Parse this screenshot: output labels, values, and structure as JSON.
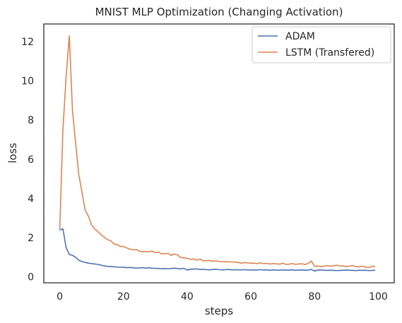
{
  "chart_data": {
    "type": "line",
    "title": "MNIST MLP Optimization (Changing Activation)",
    "xlabel": "steps",
    "ylabel": "loss",
    "xlim": [
      -5,
      105
    ],
    "ylim": [
      -0.3,
      12.9
    ],
    "xticks": [
      0,
      20,
      40,
      60,
      80,
      100
    ],
    "yticks": [
      0,
      2,
      4,
      6,
      8,
      10,
      12
    ],
    "grid": false,
    "legend_position": "top-right",
    "series": [
      {
        "name": "ADAM",
        "color": "#4c72b0",
        "x": [
          0,
          1,
          2,
          3,
          4,
          5,
          6,
          7,
          8,
          9,
          10,
          11,
          12,
          13,
          14,
          15,
          16,
          17,
          18,
          19,
          20,
          21,
          22,
          23,
          24,
          25,
          26,
          27,
          28,
          29,
          30,
          31,
          32,
          33,
          34,
          35,
          36,
          37,
          38,
          39,
          40,
          41,
          42,
          43,
          44,
          45,
          46,
          47,
          48,
          49,
          50,
          51,
          52,
          53,
          54,
          55,
          56,
          57,
          58,
          59,
          60,
          61,
          62,
          63,
          64,
          65,
          66,
          67,
          68,
          69,
          70,
          71,
          72,
          73,
          74,
          75,
          76,
          77,
          78,
          79,
          80,
          81,
          82,
          83,
          84,
          85,
          86,
          87,
          88,
          89,
          90,
          91,
          92,
          93,
          94,
          95,
          96,
          97,
          98,
          99
        ],
        "y": [
          2.39,
          2.45,
          1.5,
          1.15,
          1.1,
          1.0,
          0.85,
          0.78,
          0.74,
          0.7,
          0.68,
          0.66,
          0.64,
          0.6,
          0.56,
          0.54,
          0.53,
          0.52,
          0.5,
          0.5,
          0.49,
          0.47,
          0.48,
          0.47,
          0.45,
          0.46,
          0.47,
          0.45,
          0.47,
          0.44,
          0.44,
          0.43,
          0.42,
          0.43,
          0.41,
          0.43,
          0.45,
          0.43,
          0.41,
          0.44,
          0.35,
          0.39,
          0.4,
          0.41,
          0.38,
          0.39,
          0.37,
          0.36,
          0.38,
          0.39,
          0.37,
          0.36,
          0.37,
          0.38,
          0.36,
          0.37,
          0.36,
          0.36,
          0.37,
          0.36,
          0.35,
          0.36,
          0.35,
          0.37,
          0.35,
          0.36,
          0.34,
          0.36,
          0.35,
          0.34,
          0.36,
          0.35,
          0.35,
          0.36,
          0.34,
          0.35,
          0.36,
          0.34,
          0.35,
          0.38,
          0.3,
          0.35,
          0.36,
          0.34,
          0.33,
          0.34,
          0.33,
          0.32,
          0.33,
          0.34,
          0.35,
          0.34,
          0.33,
          0.32,
          0.34,
          0.33,
          0.34,
          0.32,
          0.33,
          0.34
        ]
      },
      {
        "name": "LSTM (Transfered)",
        "color": "#dd8452",
        "x": [
          0,
          1,
          2,
          3,
          4,
          5,
          6,
          7,
          8,
          9,
          10,
          11,
          12,
          13,
          14,
          15,
          16,
          17,
          18,
          19,
          20,
          21,
          22,
          23,
          24,
          25,
          26,
          27,
          28,
          29,
          30,
          31,
          32,
          33,
          34,
          35,
          36,
          37,
          38,
          39,
          40,
          41,
          42,
          43,
          44,
          45,
          46,
          47,
          48,
          49,
          50,
          51,
          52,
          53,
          54,
          55,
          56,
          57,
          58,
          59,
          60,
          61,
          62,
          63,
          64,
          65,
          66,
          67,
          68,
          69,
          70,
          71,
          72,
          73,
          74,
          75,
          76,
          77,
          78,
          79,
          80,
          81,
          82,
          83,
          84,
          85,
          86,
          87,
          88,
          89,
          90,
          91,
          92,
          93,
          94,
          95,
          96,
          97,
          98,
          99
        ],
        "y": [
          2.4,
          7.5,
          10.2,
          12.3,
          8.5,
          6.8,
          5.2,
          4.3,
          3.4,
          3.1,
          2.65,
          2.45,
          2.3,
          2.15,
          2.02,
          1.9,
          1.85,
          1.68,
          1.65,
          1.55,
          1.55,
          1.48,
          1.42,
          1.38,
          1.4,
          1.32,
          1.28,
          1.3,
          1.28,
          1.32,
          1.24,
          1.27,
          1.17,
          1.18,
          1.2,
          1.1,
          1.17,
          1.12,
          0.99,
          0.97,
          0.95,
          0.9,
          0.92,
          0.85,
          0.92,
          0.82,
          0.83,
          0.84,
          0.8,
          0.82,
          0.79,
          0.77,
          0.78,
          0.76,
          0.77,
          0.75,
          0.74,
          0.7,
          0.73,
          0.72,
          0.7,
          0.7,
          0.68,
          0.72,
          0.68,
          0.69,
          0.66,
          0.68,
          0.67,
          0.65,
          0.7,
          0.64,
          0.65,
          0.68,
          0.64,
          0.66,
          0.67,
          0.63,
          0.69,
          0.81,
          0.54,
          0.56,
          0.52,
          0.55,
          0.58,
          0.55,
          0.57,
          0.6,
          0.55,
          0.56,
          0.53,
          0.55,
          0.58,
          0.52,
          0.52,
          0.55,
          0.5,
          0.47,
          0.55,
          0.52
        ]
      }
    ]
  }
}
